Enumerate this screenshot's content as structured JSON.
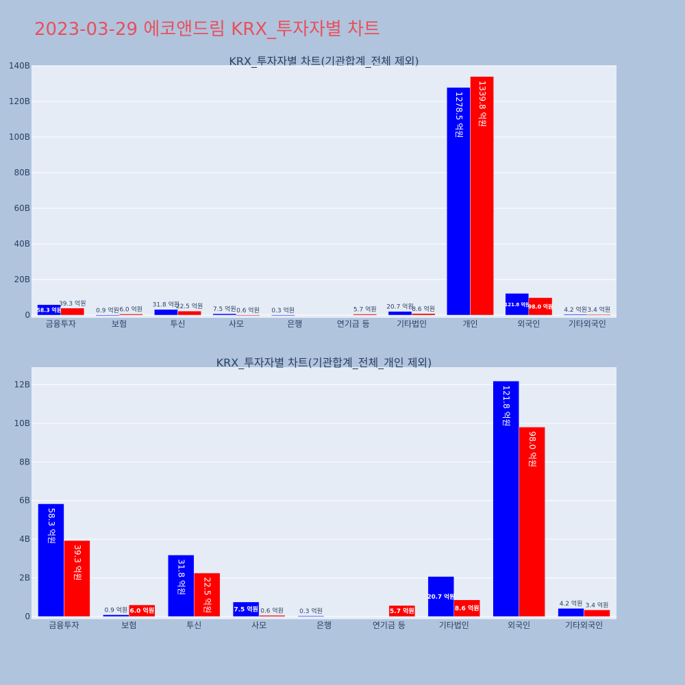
{
  "page_title": "2023-03-29 에코앤드림 KRX_투자자별 차트",
  "colors": {
    "buy": "#0000ff",
    "sell": "#ff0000",
    "plot_bg": "#e5ecf6",
    "page_bg": "#b0c4de",
    "title": "#e8505b"
  },
  "chart_data": [
    {
      "type": "bar",
      "title": "KRX_투자자별 차트(기관합계_전체 제외)",
      "categories": [
        "금융투자",
        "보험",
        "투신",
        "사모",
        "은행",
        "연기금 등",
        "기타법인",
        "개인",
        "외국인",
        "기타외국인"
      ],
      "series": [
        {
          "values": [
            5.83,
            0.09,
            3.18,
            0.75,
            0.03,
            0,
            2.07,
            127.85,
            12.18,
            0.42
          ],
          "labels": [
            "58.3 억원",
            "0.9 억원",
            "31.8 억원",
            "7.5 억원",
            "0.3 억원",
            "",
            "20.7 억원",
            "1278.5 억원",
            "121.8 억원",
            "4.2 억원"
          ]
        },
        {
          "values": [
            3.93,
            0.6,
            2.25,
            0.06,
            0,
            0.57,
            0.86,
            133.98,
            9.8,
            0.34
          ],
          "labels": [
            "39.3 억원",
            "6.0 억원",
            "22.5 억원",
            "0.6 억원",
            "",
            "5.7 억원",
            "8.6 억원",
            "1339.8 억원",
            "98.0 억원",
            "3.4 억원"
          ]
        }
      ],
      "yticks": [
        "0",
        "20B",
        "40B",
        "60B",
        "80B",
        "100B",
        "120B",
        "140B"
      ],
      "ytick_values": [
        0,
        20,
        40,
        60,
        80,
        100,
        120,
        140
      ],
      "ylim": [
        0,
        140
      ],
      "grid": true
    },
    {
      "type": "bar",
      "title": "KRX_투자자별 차트(기관합계_전체_개인 제외)",
      "categories": [
        "금융투자",
        "보험",
        "투신",
        "사모",
        "은행",
        "연기금 등",
        "기타법인",
        "외국인",
        "기타외국인"
      ],
      "series": [
        {
          "values": [
            5.83,
            0.09,
            3.18,
            0.75,
            0.03,
            0,
            2.07,
            12.18,
            0.42
          ],
          "labels": [
            "58.3 억원",
            "0.9 억원",
            "31.8 억원",
            "7.5 억원",
            "0.3 억원",
            "",
            "20.7 억원",
            "121.8 억원",
            "4.2 억원"
          ]
        },
        {
          "values": [
            3.93,
            0.6,
            2.25,
            0.06,
            0,
            0.57,
            0.86,
            9.8,
            0.34
          ],
          "labels": [
            "39.3 억원",
            "6.0 억원",
            "22.5 억원",
            "0.6 억원",
            "",
            "5.7 억원",
            "8.6 억원",
            "98.0 억원",
            "3.4 억원"
          ]
        }
      ],
      "yticks": [
        "0",
        "2B",
        "4B",
        "6B",
        "8B",
        "10B",
        "12B"
      ],
      "ytick_values": [
        0,
        2,
        4,
        6,
        8,
        10,
        12
      ],
      "ylim": [
        0,
        12.9
      ],
      "grid": true
    }
  ]
}
